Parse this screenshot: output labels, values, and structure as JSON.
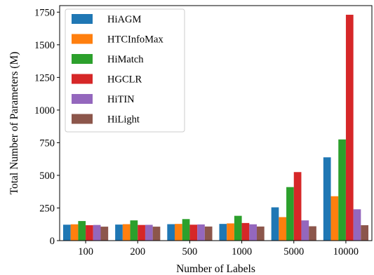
{
  "chart_data": {
    "type": "bar",
    "categories": [
      "100",
      "200",
      "500",
      "1000",
      "5000",
      "10000"
    ],
    "series": [
      {
        "name": "HiAGM",
        "color": "#1f77b4",
        "values": [
          122,
          123,
          126,
          128,
          255,
          638
        ]
      },
      {
        "name": "HTCInfoMax",
        "color": "#ff7f0e",
        "values": [
          125,
          126,
          128,
          132,
          180,
          340
        ]
      },
      {
        "name": "HiMatch",
        "color": "#2ca02c",
        "values": [
          150,
          155,
          165,
          190,
          410,
          775
        ]
      },
      {
        "name": "HGCLR",
        "color": "#d62728",
        "values": [
          118,
          120,
          122,
          135,
          525,
          1730
        ]
      },
      {
        "name": "HiTIN",
        "color": "#9467bd",
        "values": [
          120,
          121,
          124,
          125,
          155,
          240
        ]
      },
      {
        "name": "HiLight",
        "color": "#8c564b",
        "values": [
          107,
          107,
          108,
          108,
          110,
          118
        ]
      }
    ],
    "xlabel": "Number of Labels",
    "ylabel": "Total Number of Parameters (M)",
    "ylim": [
      0,
      1800
    ],
    "yticks": [
      0,
      250,
      500,
      750,
      1000,
      1250,
      1500,
      1750
    ],
    "legend_position": "top-left",
    "grid": false
  }
}
